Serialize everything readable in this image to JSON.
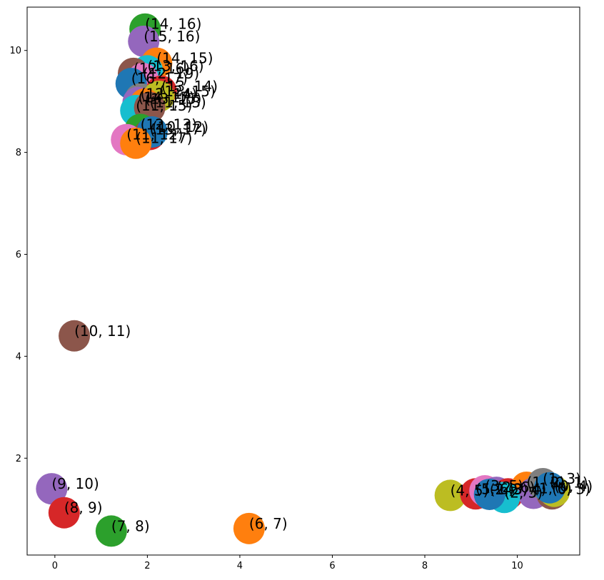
{
  "chart_data": {
    "type": "scatter",
    "title": "",
    "xlabel": "",
    "ylabel": "",
    "xlim": [
      -0.6,
      11.35
    ],
    "ylim": [
      0.1,
      10.85
    ],
    "x_ticks": [
      0,
      2,
      4,
      6,
      8,
      10
    ],
    "y_ticks": [
      2,
      4,
      6,
      8,
      10
    ],
    "grid": false,
    "legend": "none",
    "palette": [
      "#1f77b4",
      "#ff7f0e",
      "#2ca02c",
      "#d62728",
      "#9467bd",
      "#8c564b",
      "#e377c2",
      "#7f7f7f",
      "#bcbd22",
      "#17becf"
    ],
    "points": [
      {
        "x": 1.95,
        "y": 10.42,
        "label": "(14, 16)",
        "color": "#2ca02c"
      },
      {
        "x": 1.92,
        "y": 10.18,
        "label": "(15, 16)",
        "color": "#9467bd"
      },
      {
        "x": 2.2,
        "y": 9.75,
        "label": "(14, 15)",
        "color": "#ff7f0e"
      },
      {
        "x": 2.0,
        "y": 9.6,
        "label": "(13, 16)",
        "color": "#17becf"
      },
      {
        "x": 1.7,
        "y": 9.55,
        "label": "(12, 16)",
        "color": "#8c564b"
      },
      {
        "x": 1.9,
        "y": 9.45,
        "label": "(12, 19)",
        "color": "#e377c2"
      },
      {
        "x": 1.65,
        "y": 9.35,
        "label": "(16, 17)",
        "color": "#1f77b4"
      },
      {
        "x": 2.3,
        "y": 9.2,
        "label": "(13, 14)",
        "color": "#d62728"
      },
      {
        "x": 1.85,
        "y": 9.05,
        "label": "(12, 14)",
        "color": "#7f7f7f"
      },
      {
        "x": 2.25,
        "y": 9.1,
        "label": "(12, 15)",
        "color": "#bcbd22"
      },
      {
        "x": 1.8,
        "y": 8.98,
        "label": "(14, 17)",
        "color": "#9467bd"
      },
      {
        "x": 1.95,
        "y": 8.95,
        "label": "(13, 15)",
        "color": "#ff7f0e"
      },
      {
        "x": 1.75,
        "y": 8.82,
        "label": "(11, 15)",
        "color": "#17becf"
      },
      {
        "x": 2.05,
        "y": 8.88,
        "label": "(11, 13)",
        "color": "#8c564b"
      },
      {
        "x": 1.85,
        "y": 8.45,
        "label": "(12, 13)",
        "color": "#2ca02c"
      },
      {
        "x": 2.05,
        "y": 8.35,
        "label": "(13, 17)",
        "color": "#d62728"
      },
      {
        "x": 2.1,
        "y": 8.4,
        "label": "(10, 12)",
        "color": "#1f77b4"
      },
      {
        "x": 1.55,
        "y": 8.25,
        "label": "(11, 12)",
        "color": "#e377c2"
      },
      {
        "x": 1.75,
        "y": 8.18,
        "label": "(11, 17)",
        "color": "#ff7f0e"
      },
      {
        "x": 0.42,
        "y": 4.4,
        "label": "(10, 11)",
        "color": "#8c564b"
      },
      {
        "x": -0.07,
        "y": 1.4,
        "label": "(9, 10)",
        "color": "#9467bd"
      },
      {
        "x": 0.2,
        "y": 0.93,
        "label": "(8, 9)",
        "color": "#d62728"
      },
      {
        "x": 1.22,
        "y": 0.57,
        "label": "(7, 8)",
        "color": "#2ca02c"
      },
      {
        "x": 4.2,
        "y": 0.62,
        "label": "(6, 7)",
        "color": "#ff7f0e"
      },
      {
        "x": 8.55,
        "y": 1.27,
        "label": "(4, 5)",
        "color": "#bcbd22"
      },
      {
        "x": 9.1,
        "y": 1.3,
        "label": "(5, 6)",
        "color": "#d62728"
      },
      {
        "x": 9.3,
        "y": 1.36,
        "label": "(3, 5)",
        "color": "#e377c2"
      },
      {
        "x": 9.55,
        "y": 1.33,
        "label": "(2, 6)",
        "color": "#9467bd"
      },
      {
        "x": 9.8,
        "y": 1.3,
        "label": "(3, 4)",
        "color": "#d62728"
      },
      {
        "x": 10.2,
        "y": 1.43,
        "label": "(1, 2)",
        "color": "#ff7f0e"
      },
      {
        "x": 10.35,
        "y": 1.31,
        "label": "(1, 6)",
        "color": "#9467bd"
      },
      {
        "x": 10.75,
        "y": 1.3,
        "label": "(0, 3)",
        "color": "#8c564b"
      },
      {
        "x": 10.8,
        "y": 1.35,
        "label": "(0, 4)",
        "color": "#bcbd22"
      },
      {
        "x": 10.55,
        "y": 1.5,
        "label": "(1, 3)",
        "color": "#7f7f7f"
      },
      {
        "x": 10.7,
        "y": 1.42,
        "label": "(0, 1)",
        "color": "#1f77b4"
      },
      {
        "x": 9.72,
        "y": 1.23,
        "label": "(2, 5)",
        "color": "#17becf"
      },
      {
        "x": 9.4,
        "y": 1.29,
        "label": "(2, 3)",
        "color": "#1f77b4"
      }
    ]
  }
}
